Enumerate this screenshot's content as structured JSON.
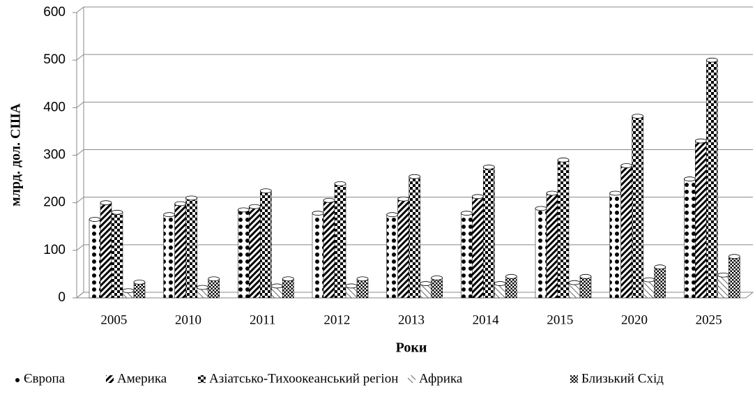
{
  "chart_data": {
    "type": "bar",
    "x_label": "Роки",
    "y_label": "млрд. дол. США",
    "categories": [
      "2005",
      "2010",
      "2011",
      "2012",
      "2013",
      "2014",
      "2015",
      "2020",
      "2025"
    ],
    "series": [
      {
        "name": "Європа",
        "color": "#000000",
        "values": [
          165,
          175,
          185,
          178,
          175,
          178,
          188,
          220,
          250
        ]
      },
      {
        "name": "Америка",
        "color": "#000000",
        "values": [
          200,
          198,
          192,
          205,
          208,
          213,
          220,
          278,
          330
        ]
      },
      {
        "name": "Азіатсько-Тихоокеанський регіон",
        "color": "#000000",
        "values": [
          180,
          210,
          225,
          240,
          255,
          275,
          290,
          382,
          500
        ]
      },
      {
        "name": "Африка",
        "color": "#000000",
        "values": [
          15,
          22,
          25,
          25,
          30,
          30,
          32,
          38,
          48
        ]
      },
      {
        "name": "Близький Схід",
        "color": "#000000",
        "values": [
          33,
          40,
          40,
          40,
          42,
          45,
          45,
          65,
          87
        ]
      }
    ],
    "ylim": [
      0,
      600
    ],
    "yticks": [
      0,
      100,
      200,
      300,
      400,
      500,
      600
    ],
    "grid": true,
    "legend": "bottom"
  }
}
